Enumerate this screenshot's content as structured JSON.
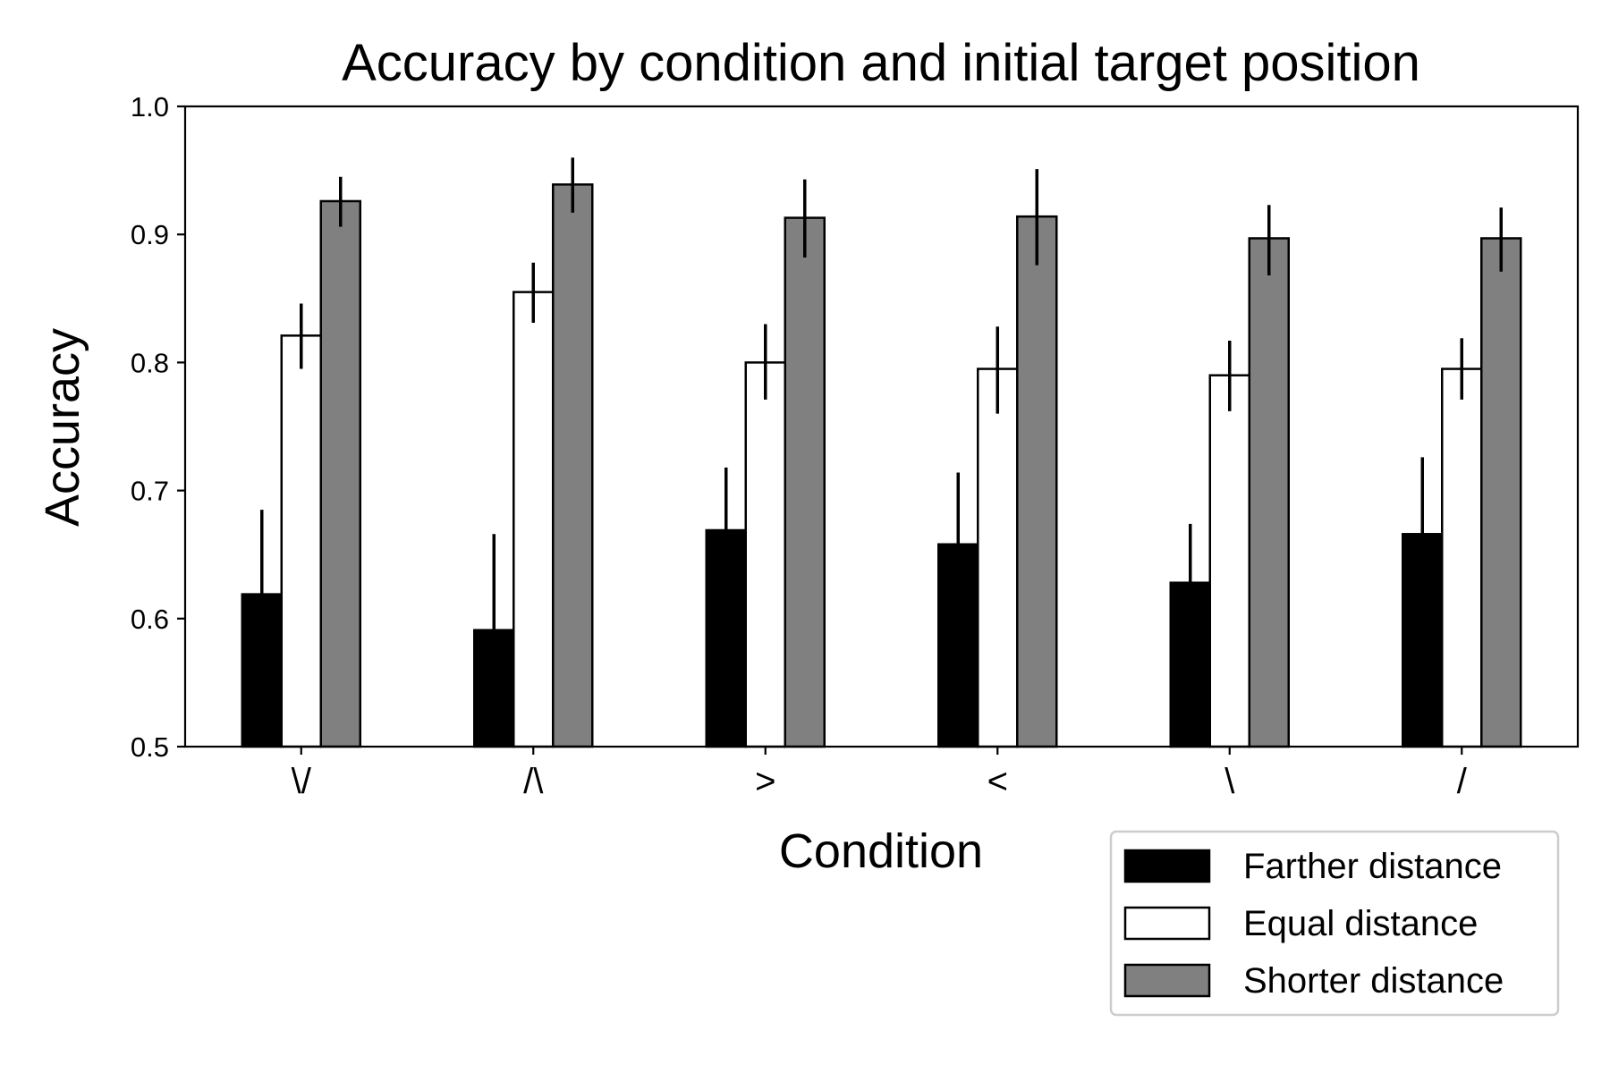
{
  "chart_data": {
    "type": "bar",
    "title": "Accuracy by condition and initial target position",
    "xlabel": "Condition",
    "ylabel": "Accuracy",
    "ylim": [
      0.5,
      1.0
    ],
    "yticks": [
      "0.5",
      "0.6",
      "0.7",
      "0.8",
      "0.9",
      "1.0"
    ],
    "grid": false,
    "legend_placement": "bottom-right, outside plot",
    "categories": [
      "\\/",
      "/\\",
      ">",
      "<",
      "\\",
      "/"
    ],
    "series": [
      {
        "name": "Farther distance",
        "color": "#000000",
        "values": [
          0.619,
          0.591,
          0.669,
          0.658,
          0.628,
          0.666
        ],
        "err_upper": [
          0.685,
          0.666,
          0.718,
          0.714,
          0.674,
          0.726
        ]
      },
      {
        "name": "Equal distance",
        "color": "#ffffff",
        "values": [
          0.821,
          0.855,
          0.8,
          0.795,
          0.79,
          0.795
        ],
        "err_lower": [
          0.795,
          0.831,
          0.771,
          0.76,
          0.762,
          0.771
        ],
        "err_upper": [
          0.846,
          0.878,
          0.83,
          0.828,
          0.817,
          0.819
        ]
      },
      {
        "name": "Shorter distance",
        "color": "#808080",
        "values": [
          0.926,
          0.939,
          0.913,
          0.914,
          0.897,
          0.897
        ],
        "err_lower": [
          0.906,
          0.917,
          0.882,
          0.876,
          0.868,
          0.871
        ],
        "err_upper": [
          0.945,
          0.96,
          0.943,
          0.951,
          0.923,
          0.921
        ]
      }
    ]
  }
}
